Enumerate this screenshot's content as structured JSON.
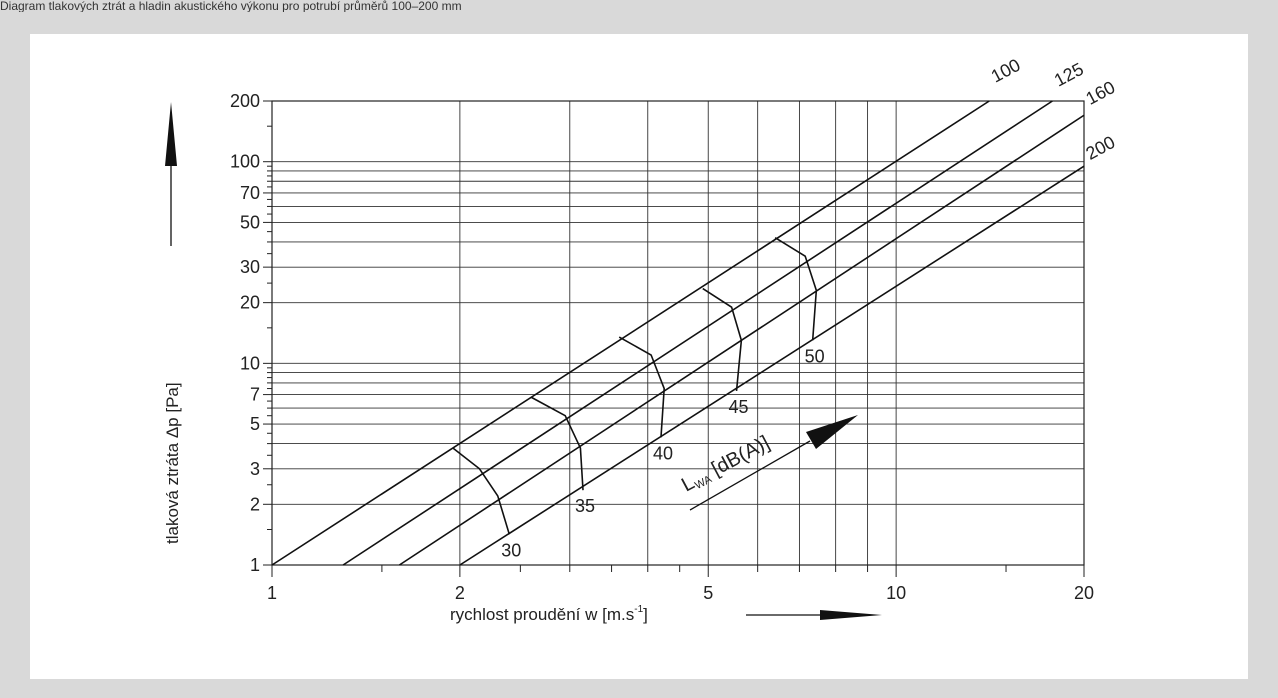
{
  "top_strip_text": "Diagram tlakových ztrát a hladin akustického výkonu pro potrubí průměrů 100–200 mm",
  "chart_data": {
    "type": "line",
    "x_scale": "log",
    "y_scale": "log",
    "xlim": [
      1,
      20
    ],
    "ylim": [
      1,
      200
    ],
    "grid": true,
    "x_ticks": [
      {
        "value": 1,
        "label": "1"
      },
      {
        "value": 2,
        "label": "2"
      },
      {
        "value": 5,
        "label": "5"
      },
      {
        "value": 10,
        "label": "10"
      },
      {
        "value": 20,
        "label": "20"
      }
    ],
    "y_ticks": [
      {
        "value": 1,
        "label": "1"
      },
      {
        "value": 2,
        "label": "2"
      },
      {
        "value": 3,
        "label": "3"
      },
      {
        "value": 5,
        "label": "5"
      },
      {
        "value": 7,
        "label": "7"
      },
      {
        "value": 10,
        "label": "10"
      },
      {
        "value": 20,
        "label": "20"
      },
      {
        "value": 30,
        "label": "30"
      },
      {
        "value": 50,
        "label": "50"
      },
      {
        "value": 70,
        "label": "70"
      },
      {
        "value": 100,
        "label": "100"
      },
      {
        "value": 200,
        "label": "200"
      }
    ],
    "x_label": "rychlost proudění w [m.s",
    "x_label_sup": "-1",
    "x_label_end": "]",
    "y_label": "tlaková ztráta Δp   [Pa]",
    "series": [
      {
        "name": "100",
        "x": [
          1,
          14.1
        ],
        "y": [
          1,
          200
        ]
      },
      {
        "name": "125",
        "x": [
          1.3,
          17.8
        ],
        "y": [
          1,
          200
        ]
      },
      {
        "name": "160",
        "x": [
          1.6,
          20
        ],
        "y": [
          1,
          170
        ]
      },
      {
        "name": "200",
        "x": [
          2,
          20
        ],
        "y": [
          1,
          95
        ]
      }
    ],
    "noise_curves": [
      {
        "label": "30",
        "x": [
          1.95,
          2.15,
          2.3,
          2.4
        ],
        "y": [
          3.8,
          3.0,
          2.2,
          1.42
        ]
      },
      {
        "label": "35",
        "x": [
          2.6,
          2.95,
          3.12,
          3.15
        ],
        "y": [
          6.8,
          5.5,
          3.8,
          2.35
        ]
      },
      {
        "label": "40",
        "x": [
          3.6,
          4.05,
          4.25,
          4.2
        ],
        "y": [
          13.5,
          11.0,
          7.5,
          4.3
        ]
      },
      {
        "label": "45",
        "x": [
          4.9,
          5.45,
          5.65,
          5.55
        ],
        "y": [
          23.5,
          19.0,
          13.0,
          7.3
        ]
      },
      {
        "label": "50",
        "x": [
          6.4,
          7.15,
          7.45,
          7.35
        ],
        "y": [
          42.0,
          34.0,
          23.0,
          13.0
        ]
      }
    ],
    "lwa_label_main": "L",
    "lwa_label_sub": "WA",
    "lwa_label_rest": " [dB(A)]"
  }
}
